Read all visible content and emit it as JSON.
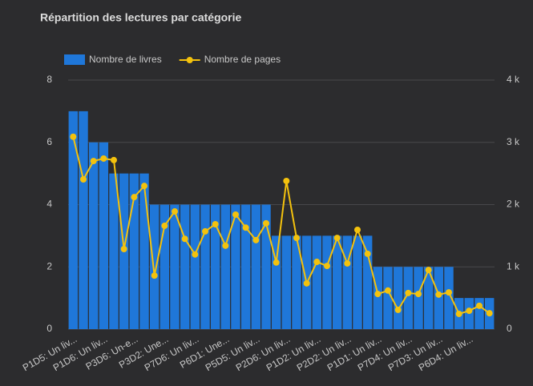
{
  "chart_data": {
    "type": "bar_line",
    "title": "Répartition des lectures par catégorie",
    "categories": [
      "P1D5: Un liv...",
      null,
      null,
      "P1D6: Un liv...",
      null,
      null,
      "P3D6: Un-e...",
      null,
      null,
      "P3D2: Une...",
      null,
      null,
      "P7D6: Un liv...",
      null,
      null,
      "P6D1: Une...",
      null,
      null,
      "P5D5: Un liv...",
      null,
      null,
      "P2D6: Un liv...",
      null,
      null,
      "P1D2: Un liv...",
      null,
      null,
      "P2D2: Un liv...",
      null,
      null,
      "P1D1: Un liv...",
      null,
      null,
      "P7D4: Un liv...",
      null,
      null,
      "P7D3: Un liv...",
      null,
      null,
      "P6D4: Un liv...",
      null,
      null
    ],
    "series": [
      {
        "name": "Nombre de livres",
        "color": "#1f77d9",
        "type": "bar",
        "values": [
          7,
          7,
          6,
          6,
          5,
          5,
          5,
          5,
          4,
          4,
          4,
          4,
          4,
          4,
          4,
          4,
          4,
          4,
          4,
          4,
          3,
          3,
          3,
          3,
          3,
          3,
          3,
          3,
          3,
          3,
          2,
          2,
          2,
          2,
          2,
          2,
          2,
          2,
          1,
          1,
          1,
          1
        ]
      },
      {
        "name": "Nombre de pages",
        "color": "#f4c20d",
        "type": "line",
        "axis": "y2",
        "values": [
          3090,
          2405,
          2700,
          2740,
          2715,
          1286,
          2120,
          2300,
          860,
          1660,
          1890,
          1450,
          1200,
          1570,
          1685,
          1340,
          1840,
          1630,
          1430,
          1700,
          1070,
          2380,
          1465,
          735,
          1080,
          1015,
          1465,
          1055,
          1595,
          1210,
          565,
          620,
          310,
          580,
          565,
          950,
          555,
          590,
          245,
          295,
          375,
          255
        ]
      }
    ],
    "ylim": [
      0,
      8
    ],
    "yticks": [
      0,
      2,
      4,
      6,
      8
    ],
    "y2lim": [
      0,
      4000
    ],
    "y2ticks": [
      0,
      {
        "value": 1000,
        "label": "1 k"
      },
      {
        "value": 2000,
        "label": "2 k"
      },
      {
        "value": 3000,
        "label": "3 k"
      },
      {
        "value": 4000,
        "label": "4 k"
      }
    ],
    "grid": true,
    "legend": "top-left"
  }
}
